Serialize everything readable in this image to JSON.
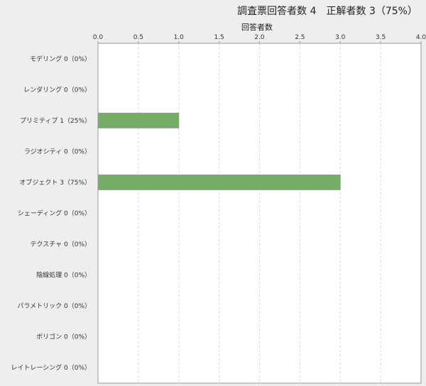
{
  "chart_data": {
    "type": "bar",
    "orientation": "horizontal",
    "title": "調査票回答者数 4　正解者数 3（75%）",
    "xlabel": "回答者数",
    "ylabel": "",
    "xlim": [
      0,
      4
    ],
    "xticks": [
      "0.0",
      "0.5",
      "1.0",
      "1.5",
      "2.0",
      "2.5",
      "3.0",
      "3.5",
      "4.0"
    ],
    "grid": true,
    "categories": [
      "モデリング 0（0%）",
      "レンダリング 0（0%）",
      "プリミティブ 1（25%）",
      "ラジオシティ 0（0%）",
      "オブジェクト 3（75%）",
      "シェーディング 0（0%）",
      "テクスチャ 0（0%）",
      "陰線処理 0（0%）",
      "パラメトリック 0（0%）",
      "ポリゴン 0（0%）",
      "レイトレーシング 0（0%）"
    ],
    "values": [
      0,
      0,
      1,
      0,
      3,
      0,
      0,
      0,
      0,
      0,
      0
    ],
    "bar_color": "#73ad66"
  }
}
